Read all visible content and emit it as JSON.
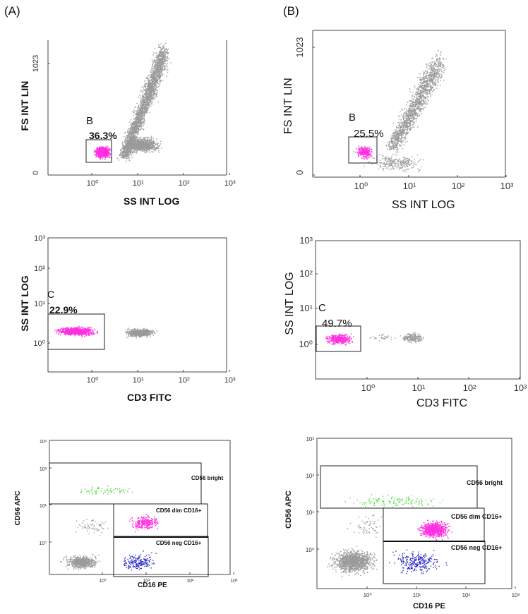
{
  "figure": {
    "panel_a_label": "(A)",
    "panel_b_label": "(B)"
  },
  "colors": {
    "pink": "#ff2fe0",
    "grey": "#9a9a9a",
    "green": "#55dd44",
    "blue": "#2b2bc8",
    "axis": "#444444"
  },
  "chart_data": [
    {
      "id": "a1",
      "type": "scatter",
      "xlabel": "SS INT LOG",
      "ylabel": "FS INT LIN",
      "x_scale": "log",
      "x_ticks": [
        "10⁰",
        "10¹",
        "10²",
        "10³"
      ],
      "y_ticks": [
        "0",
        "1023"
      ],
      "gates": [
        {
          "name": "B",
          "percent": "36.3%"
        }
      ]
    },
    {
      "id": "b1",
      "type": "scatter",
      "xlabel": "SS INT LOG",
      "ylabel": "FS INT LIN",
      "x_scale": "log",
      "x_ticks": [
        "10⁰",
        "10¹",
        "10²",
        "10³"
      ],
      "y_ticks": [
        "0",
        "1023"
      ],
      "gates": [
        {
          "name": "B",
          "percent": "25.5%"
        }
      ]
    },
    {
      "id": "a2",
      "type": "scatter",
      "xlabel": "CD3 FITC",
      "ylabel": "SS INT LOG",
      "x_scale": "log",
      "x_ticks": [
        "10⁰",
        "10¹",
        "10²",
        "10³"
      ],
      "y_ticks": [
        "10⁰",
        "10¹",
        "10²",
        "10³"
      ],
      "gates": [
        {
          "name": "C",
          "percent": "22.9%"
        }
      ]
    },
    {
      "id": "b2",
      "type": "scatter",
      "xlabel": "CD3 FITC",
      "ylabel": "SS INT LOG",
      "x_scale": "log",
      "x_ticks": [
        "10⁰",
        "10¹",
        "10²",
        "10³"
      ],
      "y_ticks": [
        "10⁰",
        "10¹",
        "10²",
        "10³"
      ],
      "gates": [
        {
          "name": "C",
          "percent": "49.7%"
        }
      ]
    },
    {
      "id": "a3",
      "type": "scatter",
      "xlabel": "CD16 PE",
      "ylabel": "CD56 APC",
      "x_scale": "log",
      "x_ticks": [
        "10⁰",
        "10¹",
        "10²",
        "10³"
      ],
      "y_ticks": [
        "10⁰",
        "10¹",
        "10²",
        "10³"
      ],
      "gates": [
        {
          "name": "CD56 bright"
        },
        {
          "name": "CD56 dim CD16+"
        },
        {
          "name": "CD56 neg CD16+"
        }
      ]
    },
    {
      "id": "b3",
      "type": "scatter",
      "xlabel": "CD16 PE",
      "ylabel": "CD56 APC",
      "x_scale": "log",
      "x_ticks": [
        "10⁰",
        "10¹",
        "10²",
        "10³"
      ],
      "y_ticks": [
        "10⁰",
        "10¹",
        "10²",
        "10³"
      ],
      "gates": [
        {
          "name": "CD56 bright"
        },
        {
          "name": "CD56 dim CD16+"
        },
        {
          "name": "CD56 neg CD16+"
        }
      ]
    }
  ]
}
